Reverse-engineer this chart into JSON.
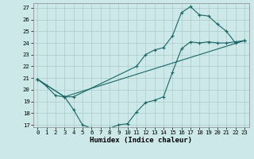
{
  "title": "",
  "xlabel": "Humidex (Indice chaleur)",
  "ylabel": "",
  "background_color": "#cce8e8",
  "grid_color": "#aacccc",
  "line_color": "#1a6666",
  "xlim": [
    -0.5,
    23.5
  ],
  "ylim": [
    16.8,
    27.4
  ],
  "xticks": [
    0,
    1,
    2,
    3,
    4,
    5,
    6,
    7,
    8,
    9,
    10,
    11,
    12,
    13,
    14,
    15,
    16,
    17,
    18,
    19,
    20,
    21,
    22,
    23
  ],
  "yticks": [
    17,
    18,
    19,
    20,
    21,
    22,
    23,
    24,
    25,
    26,
    27
  ],
  "line1_x": [
    0,
    1,
    2,
    3,
    4,
    5,
    6,
    7,
    8,
    9,
    10,
    11,
    12,
    13,
    14,
    15,
    16,
    17,
    18,
    19,
    20,
    21,
    22,
    23
  ],
  "line1_y": [
    20.9,
    20.3,
    19.5,
    19.4,
    18.3,
    17.0,
    16.7,
    16.65,
    16.7,
    17.0,
    17.1,
    18.1,
    18.9,
    19.1,
    19.4,
    21.5,
    23.5,
    24.1,
    24.0,
    24.1,
    24.0,
    24.0,
    24.1,
    24.2
  ],
  "line2_x": [
    0,
    3,
    4,
    11,
    12,
    13,
    14,
    15,
    16,
    17,
    18,
    19,
    20,
    21,
    22,
    23
  ],
  "line2_y": [
    20.9,
    19.4,
    19.4,
    22.0,
    23.0,
    23.4,
    23.6,
    24.6,
    26.6,
    27.1,
    26.4,
    26.3,
    25.6,
    25.0,
    24.0,
    24.2
  ],
  "line3_x": [
    0,
    3,
    23
  ],
  "line3_y": [
    20.9,
    19.4,
    24.2
  ],
  "tick_fontsize": 5.2,
  "xlabel_fontsize": 6.5
}
